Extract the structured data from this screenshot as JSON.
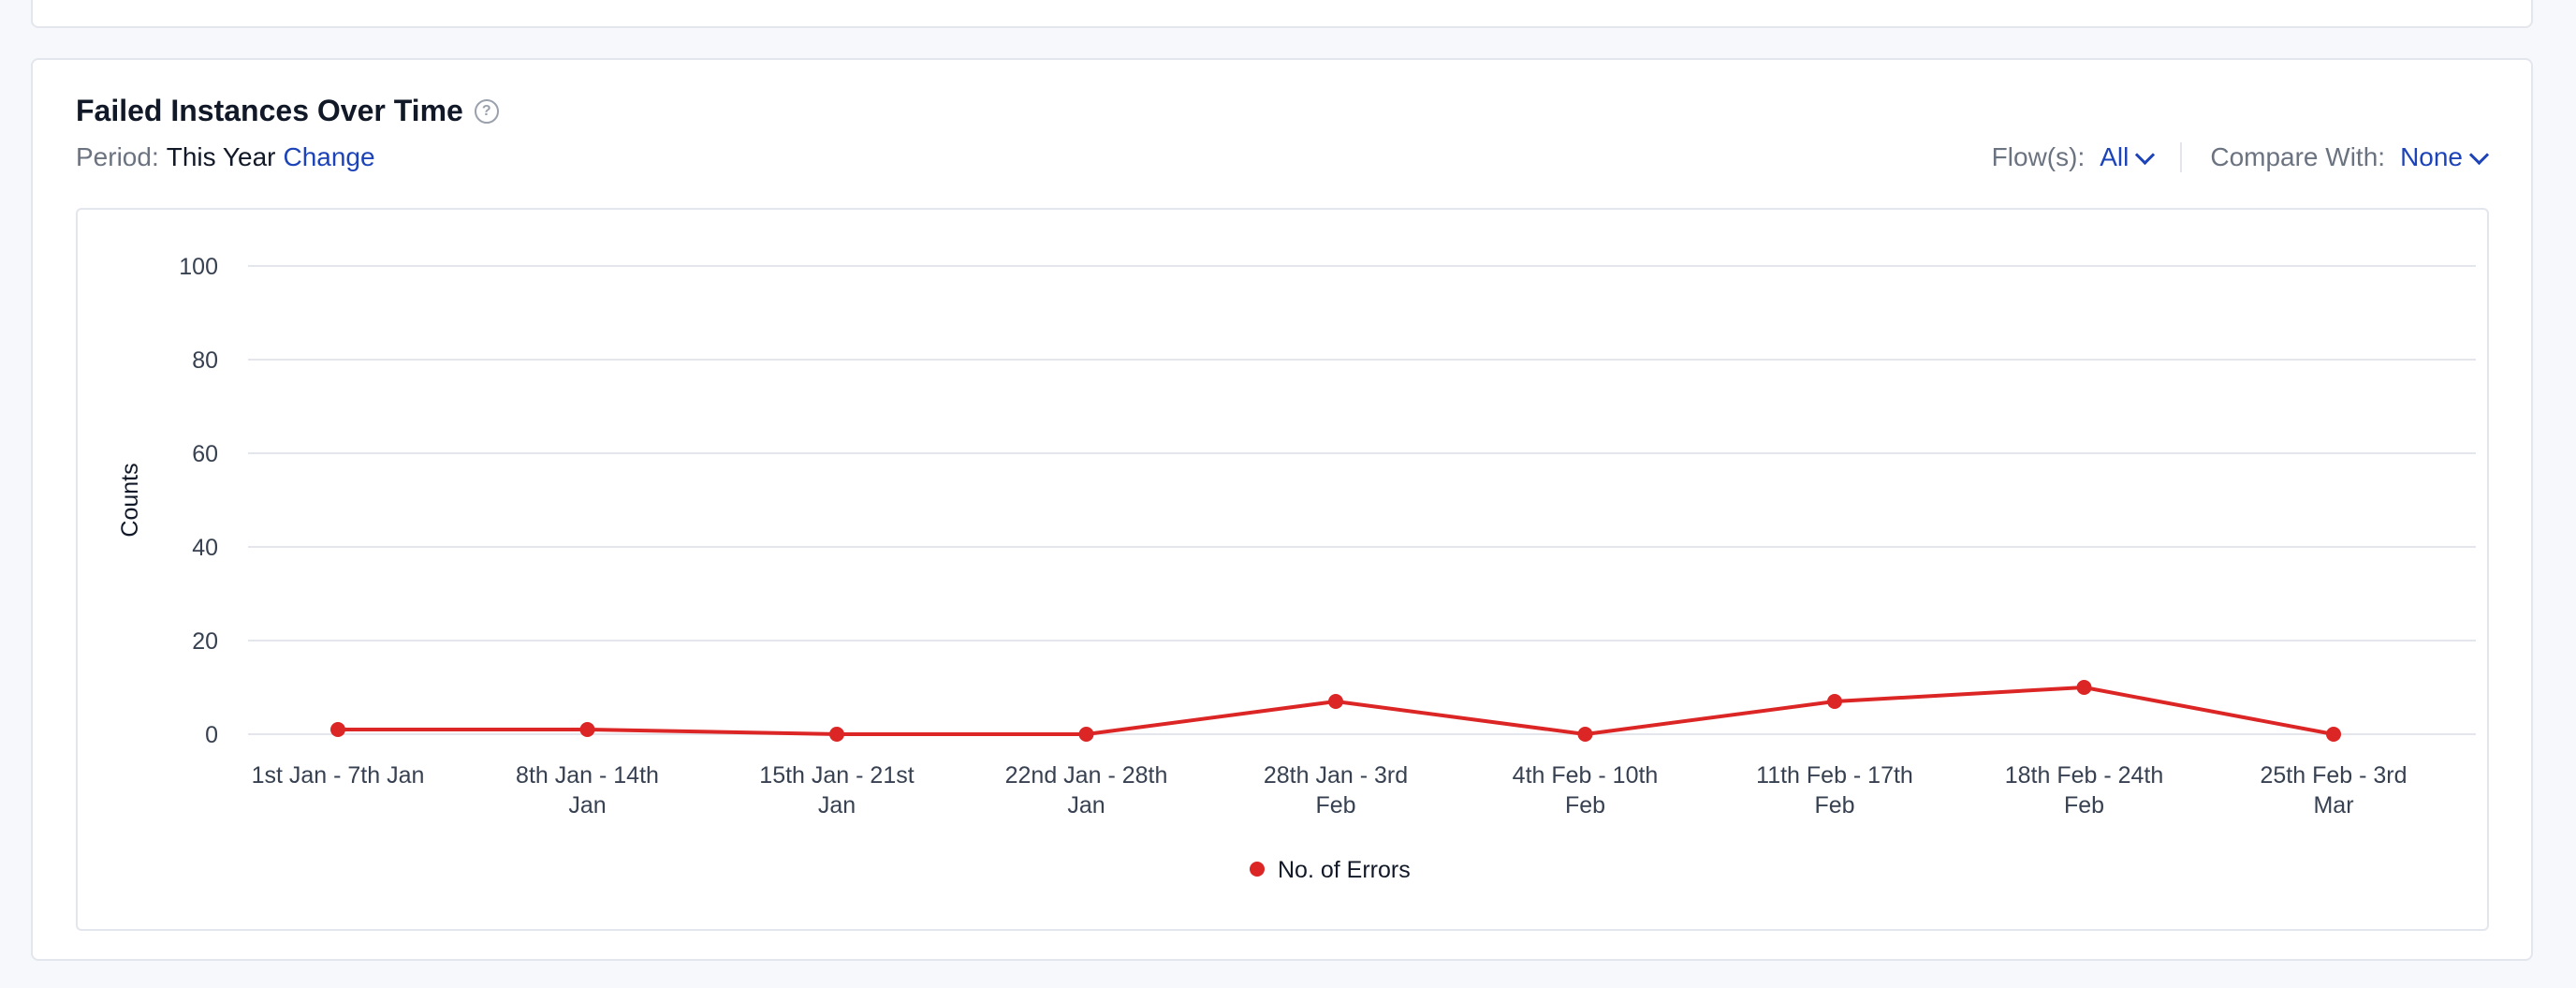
{
  "header": {
    "title": "Failed Instances Over Time",
    "help_icon": "question-circle-icon",
    "period_label": "Period:",
    "period_value": "This Year",
    "change_label": "Change",
    "flows_label": "Flow(s):",
    "flows_value": "All",
    "compare_label": "Compare With:",
    "compare_value": "None"
  },
  "colors": {
    "accent": "#1d43b8",
    "series": "#dc2626",
    "grid": "#e3e6ec"
  },
  "chart_data": {
    "type": "line",
    "title": "",
    "xlabel": "",
    "ylabel": "Counts",
    "ylim": [
      0,
      100
    ],
    "yticks": [
      0,
      20,
      40,
      60,
      80,
      100
    ],
    "grid": true,
    "legend_position": "bottom-center",
    "categories": [
      [
        "1st Jan - 7th Jan"
      ],
      [
        "8th Jan - 14th",
        "Jan"
      ],
      [
        "15th Jan - 21st",
        "Jan"
      ],
      [
        "22nd Jan - 28th",
        "Jan"
      ],
      [
        "28th Jan - 3rd",
        "Feb"
      ],
      [
        "4th Feb - 10th",
        "Feb"
      ],
      [
        "11th Feb - 17th",
        "Feb"
      ],
      [
        "18th Feb - 24th",
        "Feb"
      ],
      [
        "25th Feb - 3rd",
        "Mar"
      ]
    ],
    "series": [
      {
        "name": "No. of Errors",
        "color": "#dc2626",
        "values": [
          1,
          1,
          0,
          0,
          7,
          0,
          7,
          10,
          0
        ]
      }
    ]
  }
}
